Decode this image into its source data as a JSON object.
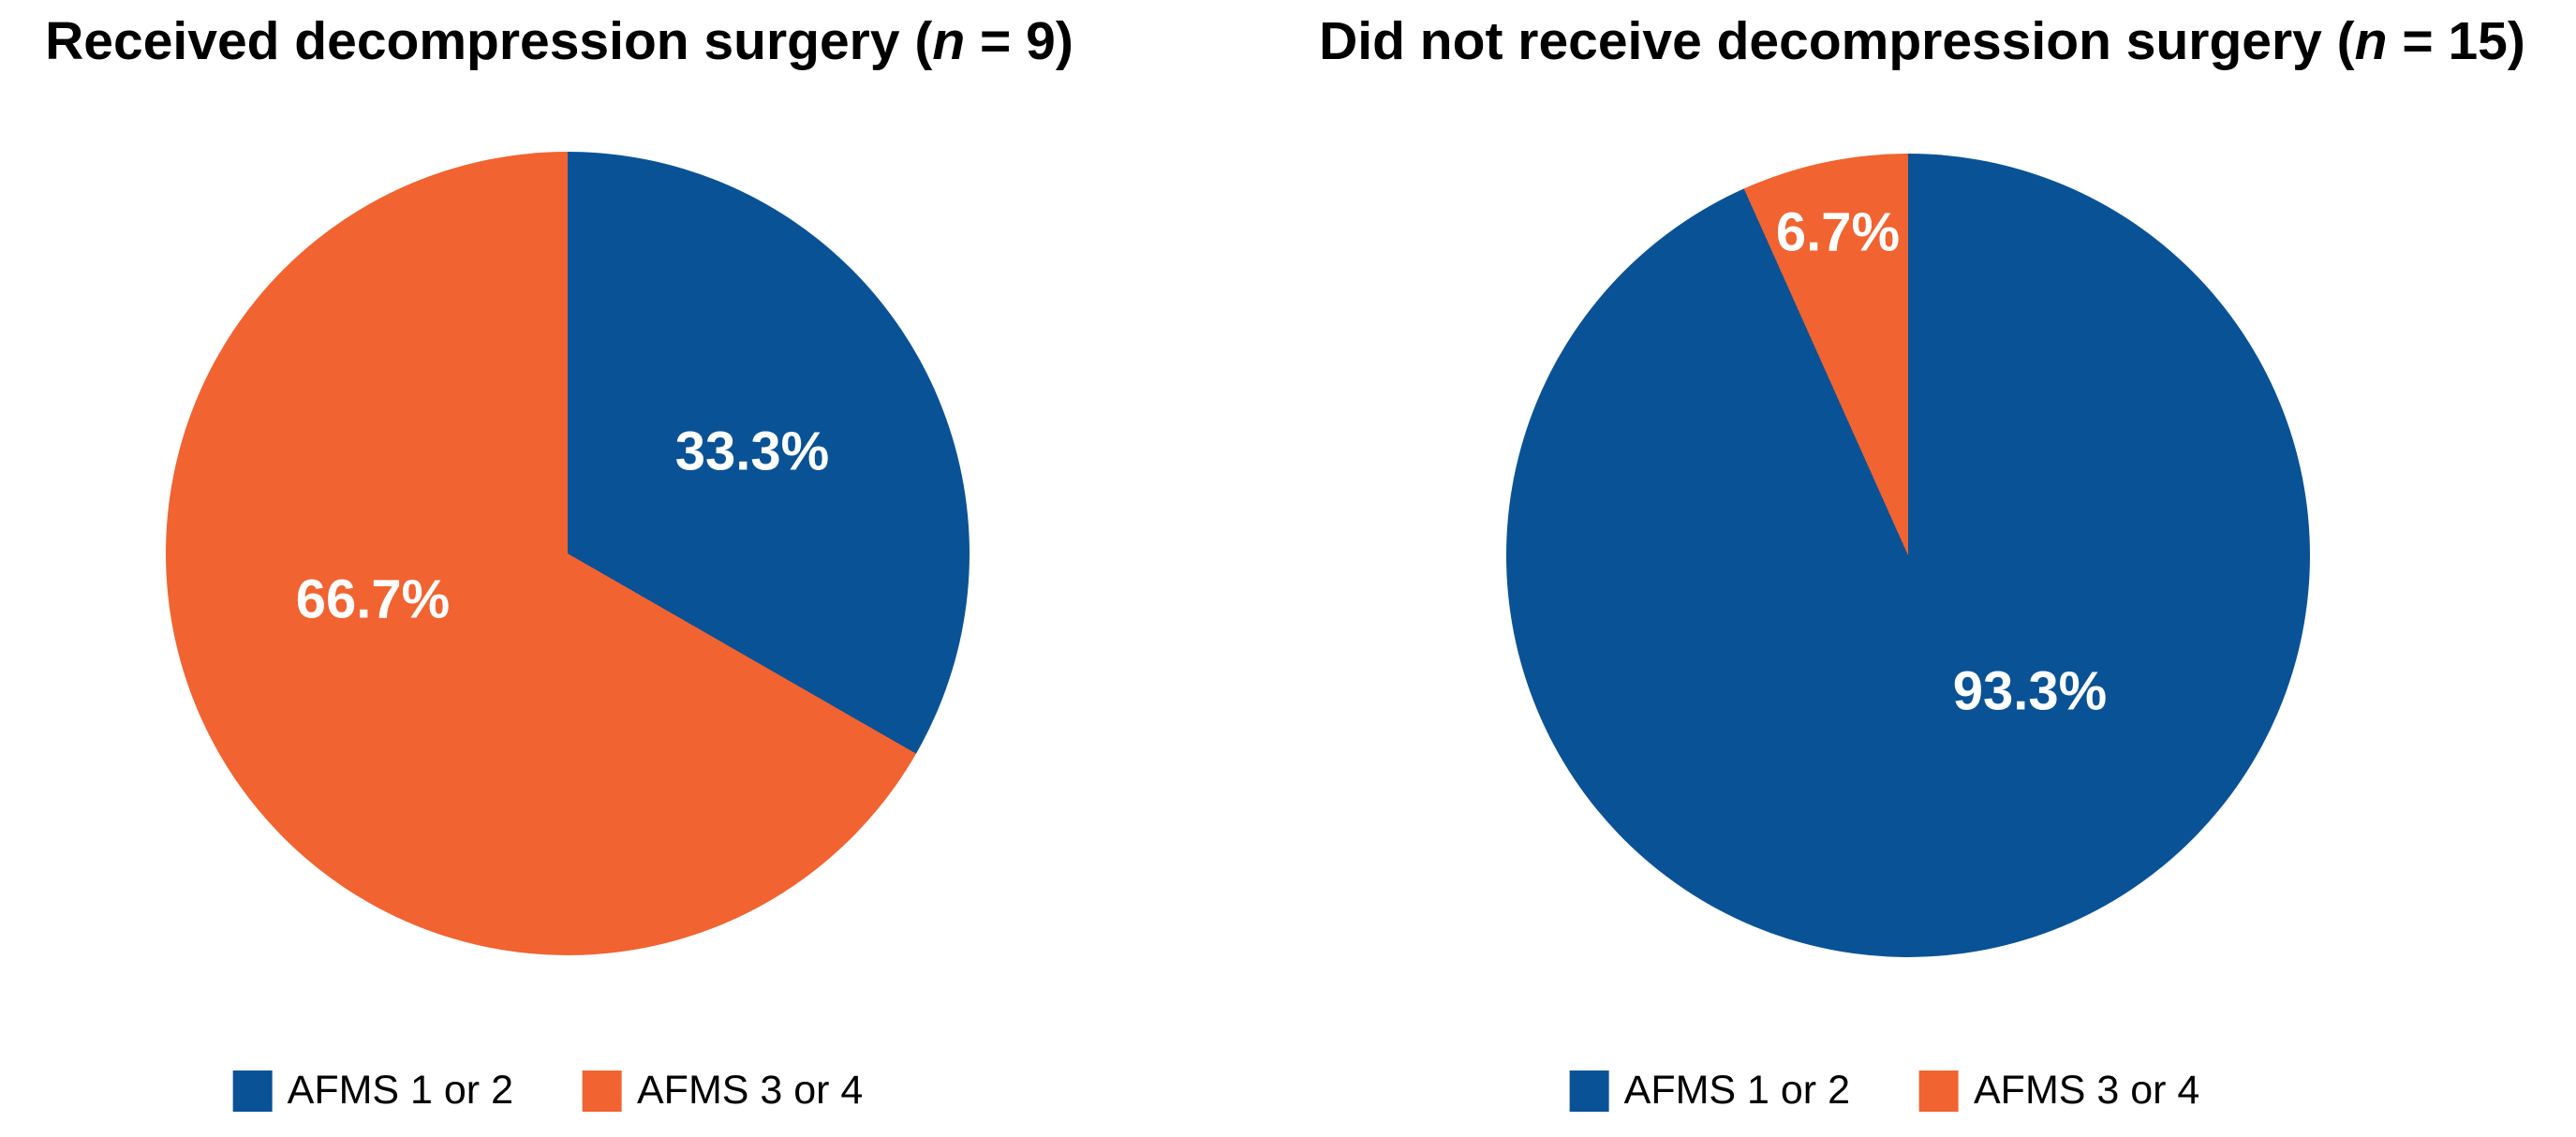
{
  "background": "#ffffff",
  "text_color": "#000000",
  "slice_label_color": "#ffffff",
  "chart_data": [
    {
      "type": "pie",
      "title": "Received decompression surgery (n = 9)",
      "title_parts": {
        "prefix": "Received decompression surgery (",
        "italic_var": "n",
        "suffix": " = 9)"
      },
      "n": 9,
      "categories": [
        "AFMS 1 or 2",
        "AFMS 3 or 4"
      ],
      "values_pct": [
        33.3,
        66.7
      ],
      "slice_labels": [
        "33.3%",
        "66.7%"
      ],
      "colors": [
        "#0A5296",
        "#F16330"
      ],
      "start_angle": "top",
      "direction": "clockwise",
      "legend_position": "bottom"
    },
    {
      "type": "pie",
      "title": "Did not receive decompression surgery (n = 15)",
      "title_parts": {
        "prefix": "Did not receive decompression surgery (",
        "italic_var": "n",
        "suffix": " = 15)"
      },
      "n": 15,
      "categories": [
        "AFMS 1 or 2",
        "AFMS 3 or 4"
      ],
      "values_pct": [
        93.3,
        6.7
      ],
      "slice_labels": [
        "93.3%",
        "6.7%"
      ],
      "colors": [
        "#0A5296",
        "#F16330"
      ],
      "start_angle": "top",
      "direction": "clockwise",
      "legend_position": "bottom"
    }
  ]
}
